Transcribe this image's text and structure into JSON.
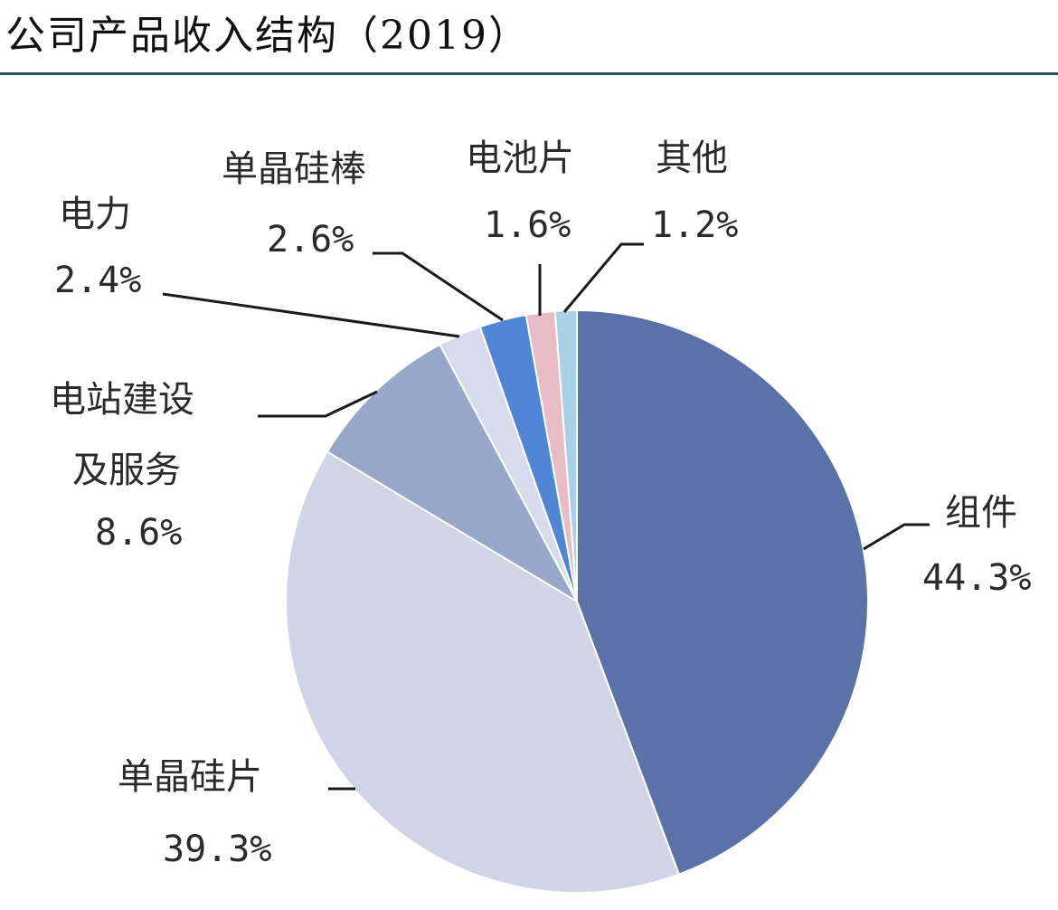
{
  "title": "公司产品收入结构（2019）",
  "chart_data": {
    "type": "pie",
    "title": "公司产品收入结构（2019）",
    "start_angle_deg": 0,
    "direction": "clockwise",
    "slices": [
      {
        "label": "组件",
        "value": 44.3,
        "value_label": "44.3%",
        "color": "#5b72a8"
      },
      {
        "label": "单晶硅片",
        "value": 39.3,
        "value_label": "39.3%",
        "color": "#cfd5e6"
      },
      {
        "label": "电站建设及服务",
        "label_lines": [
          "电站建设",
          "及服务"
        ],
        "value": 8.6,
        "value_label": "8.6%",
        "color": "#98a8c8"
      },
      {
        "label": "电力",
        "value": 2.4,
        "value_label": "2.4%",
        "color": "#d6dcec"
      },
      {
        "label": "单晶硅棒",
        "value": 2.6,
        "value_label": "2.6%",
        "color": "#4f86d6"
      },
      {
        "label": "电池片",
        "value": 1.6,
        "value_label": "1.6%",
        "color": "#e8bcc4"
      },
      {
        "label": "其他",
        "value": 1.2,
        "value_label": "1.2%",
        "color": "#a9d0e6"
      }
    ]
  }
}
